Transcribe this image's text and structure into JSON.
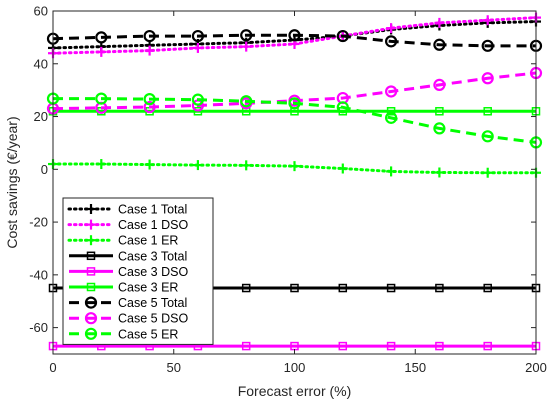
{
  "chart_data": {
    "type": "line",
    "title": "",
    "xlabel": "Forecast error (%)",
    "ylabel": "Cost savings (€/year)",
    "xlim": [
      0,
      200
    ],
    "ylim": [
      -70,
      60
    ],
    "xticks": [
      0,
      50,
      100,
      150,
      200
    ],
    "yticks": [
      -60,
      -40,
      -20,
      0,
      20,
      40,
      60
    ],
    "grid": false,
    "legend_position": "lower-left",
    "x": [
      0,
      20,
      40,
      60,
      80,
      100,
      120,
      140,
      160,
      180,
      200
    ],
    "series": [
      {
        "name": "Case 1 Total",
        "color": "#000000",
        "line": "dotted",
        "marker": "plus",
        "values": [
          46,
          46.5,
          47,
          47.5,
          48,
          49,
          50.5,
          53,
          54.5,
          55.5,
          56
        ]
      },
      {
        "name": "Case 1 DSO",
        "color": "#ff00ff",
        "line": "dotted",
        "marker": "plus",
        "values": [
          44,
          44.5,
          45,
          46,
          46.5,
          47.5,
          50.5,
          53.5,
          55.5,
          56.5,
          57.5
        ]
      },
      {
        "name": "Case 1 ER",
        "color": "#00ff00",
        "line": "dotted",
        "marker": "plus",
        "values": [
          2,
          2,
          1.8,
          1.6,
          1.5,
          1.2,
          0.3,
          -0.8,
          -1.2,
          -1.3,
          -1.3
        ]
      },
      {
        "name": "Case 3 Total",
        "color": "#000000",
        "line": "solid",
        "marker": "square",
        "values": [
          -45,
          -45,
          -45,
          -45,
          -45,
          -45,
          -45,
          -45,
          -45,
          -45,
          -45
        ]
      },
      {
        "name": "Case 3 DSO",
        "color": "#ff00ff",
        "line": "solid",
        "marker": "square",
        "values": [
          -67,
          -67,
          -67,
          -67,
          -67,
          -67,
          -67,
          -67,
          -67,
          -67,
          -67
        ]
      },
      {
        "name": "Case 3 ER",
        "color": "#00ff00",
        "line": "solid",
        "marker": "square",
        "values": [
          22,
          22,
          22,
          22,
          22,
          22,
          22,
          22,
          22,
          22,
          22
        ]
      },
      {
        "name": "Case 5 Total",
        "color": "#000000",
        "line": "dashed",
        "marker": "circle",
        "values": [
          49.5,
          50,
          50.5,
          50.5,
          50.8,
          50.8,
          50.5,
          48.5,
          47.2,
          46.8,
          46.8
        ]
      },
      {
        "name": "Case 5 DSO",
        "color": "#ff00ff",
        "line": "dashed",
        "marker": "circle",
        "values": [
          23,
          23.3,
          23.6,
          24.2,
          25,
          26,
          27,
          29.5,
          32,
          34.5,
          36.5
        ]
      },
      {
        "name": "Case 5 ER",
        "color": "#00ff00",
        "line": "dashed",
        "marker": "circle",
        "values": [
          26.8,
          26.8,
          26.6,
          26.4,
          25.8,
          25,
          23.5,
          19.5,
          15.5,
          12.5,
          10.2
        ]
      }
    ]
  }
}
